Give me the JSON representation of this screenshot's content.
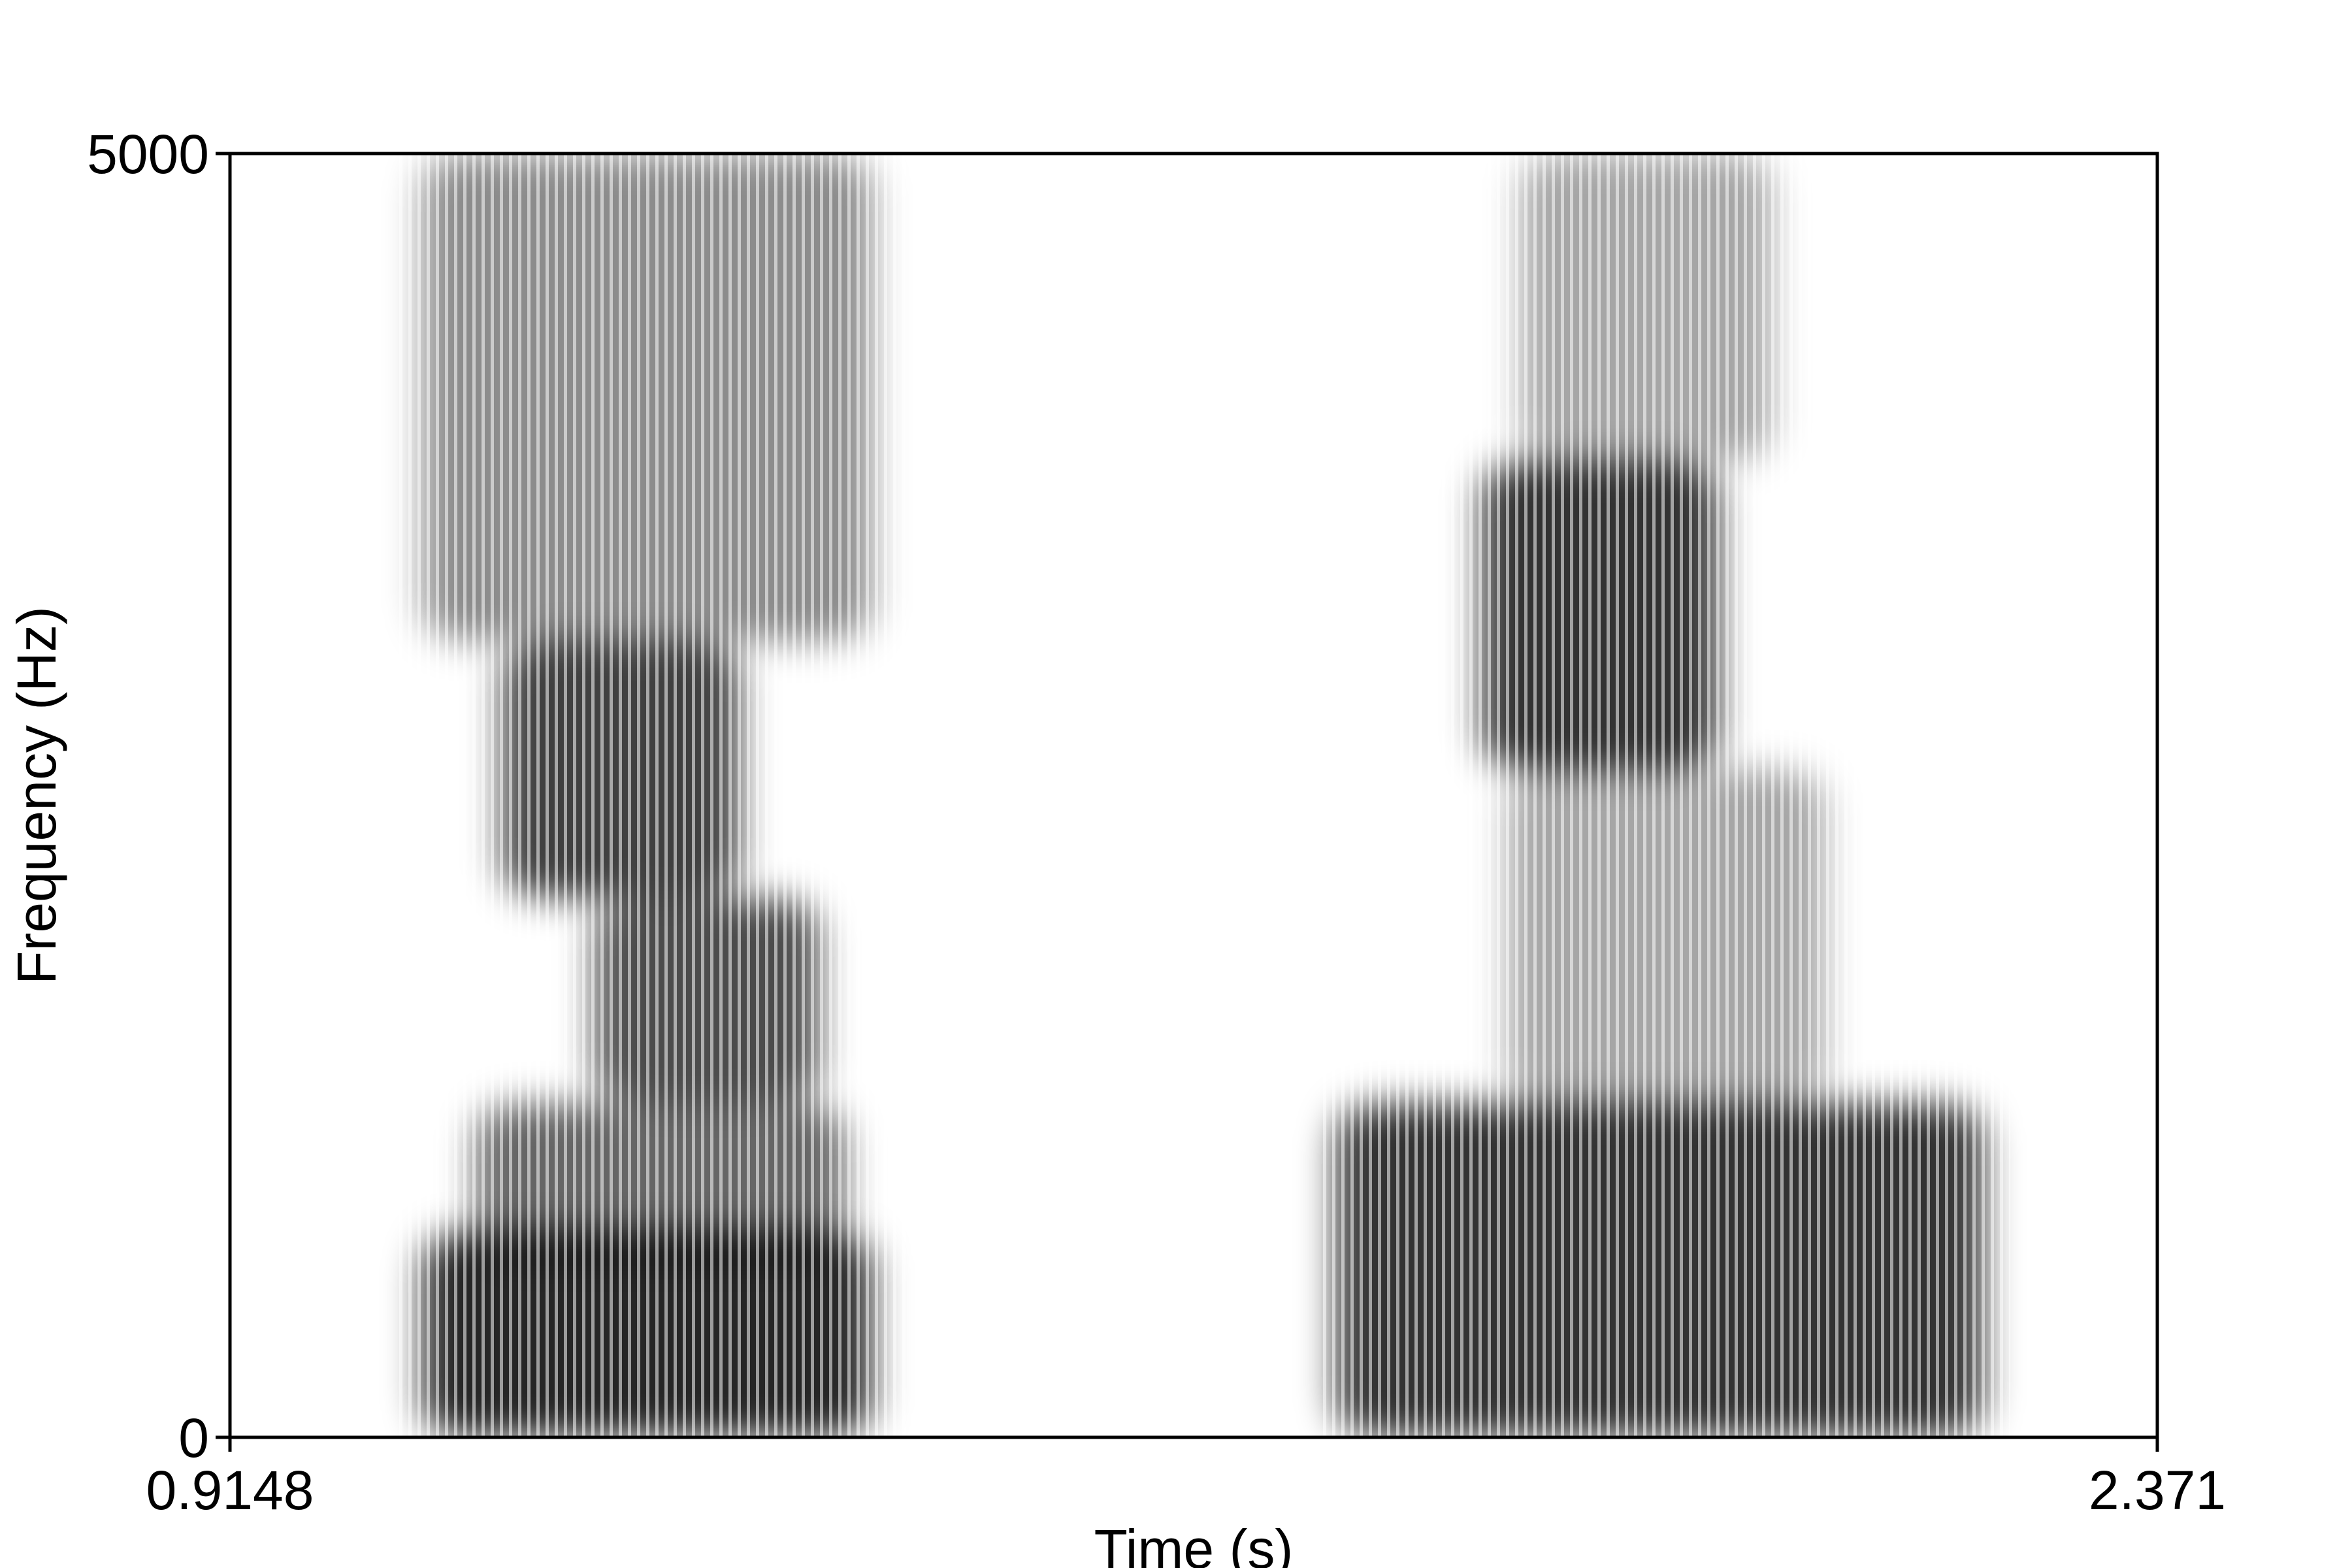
{
  "chart_data": {
    "type": "heatmap",
    "title": "",
    "xlabel": "Time (s)",
    "ylabel": "Frequency (Hz)",
    "xlim": [
      0.9148,
      2.371
    ],
    "ylim": [
      0,
      5000
    ],
    "x_tick_labels": [
      "0.9148",
      "2.371"
    ],
    "y_tick_labels": [
      "0",
      "5000"
    ],
    "colormap": "grayscale (white = low energy, black = high energy)",
    "grid": false,
    "legend": "none",
    "segments": [
      {
        "name": "",
        "t_start": 1.04,
        "t_end": 1.43,
        "bands": [
          {
            "t0": 1.06,
            "t1": 1.4,
            "f0": 0,
            "f1": 800,
            "intensity": 0.85
          },
          {
            "t0": 1.1,
            "t1": 1.38,
            "f0": 700,
            "f1": 1300,
            "intensity": 0.6
          },
          {
            "t0": 1.19,
            "t1": 1.36,
            "f0": 1300,
            "f1": 2100,
            "intensity": 0.7
          },
          {
            "t0": 1.12,
            "t1": 1.3,
            "f0": 2100,
            "f1": 3100,
            "intensity": 0.75
          },
          {
            "t0": 1.06,
            "t1": 1.4,
            "f0": 3100,
            "f1": 5000,
            "intensity": 0.45
          }
        ]
      },
      {
        "name": "",
        "t_start": 1.74,
        "t_end": 2.26,
        "bands": [
          {
            "t0": 1.75,
            "t1": 2.24,
            "f0": 0,
            "f1": 1300,
            "intensity": 0.8
          },
          {
            "t0": 1.86,
            "t1": 2.04,
            "f0": 2600,
            "f1": 3800,
            "intensity": 0.8
          },
          {
            "t0": 1.88,
            "t1": 2.12,
            "f0": 1300,
            "f1": 2600,
            "intensity": 0.35
          },
          {
            "t0": 1.89,
            "t1": 2.08,
            "f0": 3800,
            "f1": 5000,
            "intensity": 0.35
          }
        ]
      }
    ]
  }
}
